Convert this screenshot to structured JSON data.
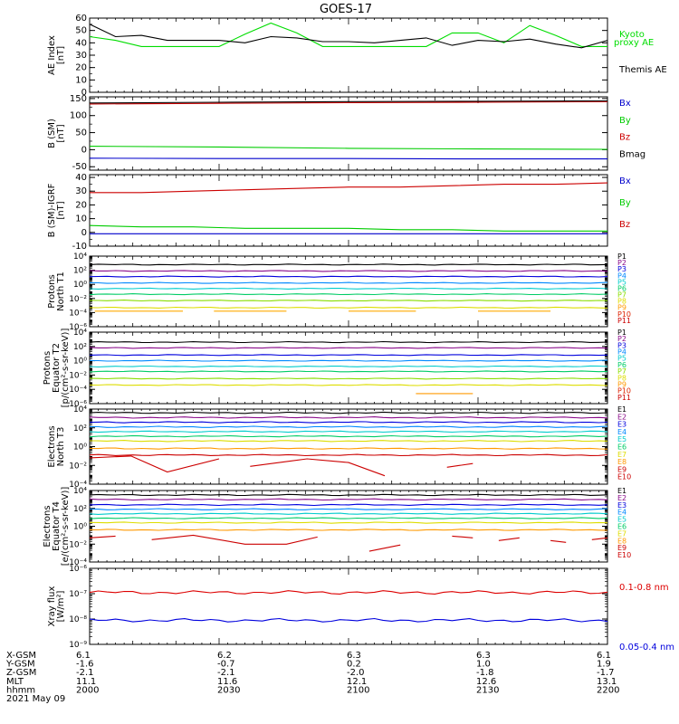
{
  "title": "GOES-17",
  "chart_data": [
    {
      "id": "ae",
      "type": "line",
      "ylabel": "AE Index [nT]",
      "yscale": "linear",
      "ylim": [
        0,
        60
      ],
      "yticks": [
        0,
        10,
        20,
        30,
        40,
        50,
        60
      ],
      "ticklabels": [
        "0",
        "10",
        "20",
        "30",
        "40",
        "50",
        "60"
      ],
      "x_fraction": [
        0,
        0.05,
        0.1,
        0.15,
        0.2,
        0.25,
        0.3,
        0.35,
        0.4,
        0.45,
        0.5,
        0.55,
        0.6,
        0.65,
        0.7,
        0.75,
        0.8,
        0.85,
        0.9,
        0.95,
        1
      ],
      "series": [
        {
          "name": "Kyoto proxy AE",
          "color": "#00dd00",
          "values": [
            45,
            42,
            37,
            37,
            37,
            37,
            47,
            56,
            48,
            37,
            37,
            37,
            37,
            37,
            48,
            48,
            40,
            54,
            46,
            37,
            37
          ]
        },
        {
          "name": "Themis AE",
          "color": "#000000",
          "values": [
            55,
            45,
            46,
            42,
            42,
            42,
            40,
            45,
            44,
            41,
            41,
            40,
            42,
            44,
            38,
            42,
            41,
            43,
            39,
            36,
            42
          ]
        }
      ]
    },
    {
      "id": "bsm",
      "type": "line",
      "ylabel": "B (SM) [nT]",
      "yscale": "linear",
      "ylim": [
        -60,
        155
      ],
      "yticks": [
        -50,
        0,
        50,
        100,
        150
      ],
      "ticklabels": [
        "-50",
        "0",
        "50",
        "100",
        "150"
      ],
      "x_fraction": [
        0,
        0.25,
        0.5,
        0.75,
        1
      ],
      "series": [
        {
          "name": "Bx",
          "color": "#0000cc",
          "values": [
            -25,
            -26,
            -26,
            -27,
            -27
          ]
        },
        {
          "name": "By",
          "color": "#00cc00",
          "values": [
            10,
            8,
            4,
            2,
            1
          ]
        },
        {
          "name": "Bz",
          "color": "#cc0000",
          "values": [
            134,
            136,
            138,
            139,
            141
          ]
        },
        {
          "name": "Bmag",
          "color": "#000000",
          "values": [
            137,
            139,
            141,
            142,
            143
          ]
        }
      ]
    },
    {
      "id": "bigrf",
      "type": "line",
      "ylabel": "B (SM)-IGRF [nT]",
      "yscale": "linear",
      "ylim": [
        -10,
        42
      ],
      "yticks": [
        -10,
        0,
        10,
        20,
        30,
        40
      ],
      "ticklabels": [
        "-10",
        "0",
        "10",
        "20",
        "30",
        "40"
      ],
      "x_fraction": [
        0,
        0.1,
        0.2,
        0.3,
        0.4,
        0.5,
        0.6,
        0.7,
        0.8,
        0.9,
        1
      ],
      "series": [
        {
          "name": "Bx",
          "color": "#0000cc",
          "values": [
            -1,
            -1,
            -1,
            -1,
            -1,
            -1,
            -1,
            -1,
            -1,
            -1,
            -1
          ]
        },
        {
          "name": "By",
          "color": "#00cc00",
          "values": [
            5,
            4,
            4,
            3,
            3,
            3,
            2,
            2,
            1,
            1,
            1
          ]
        },
        {
          "name": "Bz",
          "color": "#cc0000",
          "values": [
            29,
            29,
            30,
            31,
            32,
            33,
            33,
            34,
            35,
            35,
            36
          ]
        }
      ]
    },
    {
      "id": "pn",
      "type": "line",
      "ylabel": "Protons North T1",
      "yscale": "log",
      "ylim": [
        -6,
        4
      ],
      "yticks": [
        -6,
        -4,
        -2,
        0,
        2,
        4
      ],
      "ticklabels": [
        "10⁻⁶",
        "10⁻⁴",
        "10⁻²",
        "10⁰",
        "10²",
        "10⁴"
      ],
      "series": [
        {
          "name": "P1",
          "color": "#000000",
          "level": 2.8,
          "dashed": false
        },
        {
          "name": "P2",
          "color": "#8a0b8a",
          "level": 1.9,
          "dashed": false
        },
        {
          "name": "P3",
          "color": "#0000dd",
          "level": 1.1,
          "dashed": false
        },
        {
          "name": "P4",
          "color": "#0088ff",
          "level": 0.2,
          "dashed": false
        },
        {
          "name": "P5",
          "color": "#00cccc",
          "level": -0.6,
          "dashed": false
        },
        {
          "name": "P6",
          "color": "#00cc66",
          "level": -1.4,
          "dashed": false
        },
        {
          "name": "P7",
          "color": "#88dd00",
          "level": -2.3,
          "dashed": false
        },
        {
          "name": "P8",
          "color": "#dddd00",
          "level": -3.3,
          "dashed": true
        },
        {
          "name": "P9",
          "color": "#ff9900",
          "level": -9,
          "dashed": false
        },
        {
          "name": "P10",
          "color": "#dd2200",
          "level": -9,
          "dashed": false
        },
        {
          "name": "P11",
          "color": "#cc0000",
          "level": -9,
          "dashed": false
        }
      ]
    },
    {
      "id": "pe",
      "type": "line",
      "ylabel": "Protons Equator T2 [p/(cm²-s-sr-keV)]",
      "yscale": "log",
      "ylim": [
        -6,
        4
      ],
      "yticks": [
        -6,
        -4,
        -2,
        0,
        2,
        4
      ],
      "ticklabels": [
        "10⁻⁶",
        "10⁻⁴",
        "10⁻²",
        "10⁰",
        "10²",
        "10⁴"
      ],
      "series": [
        {
          "name": "P1",
          "color": "#000000",
          "level": 2.6,
          "dashed": false
        },
        {
          "name": "P2",
          "color": "#8a0b8a",
          "level": 1.8,
          "dashed": false
        },
        {
          "name": "P3",
          "color": "#0000dd",
          "level": 0.8,
          "dashed": false
        },
        {
          "name": "P4",
          "color": "#0088ff",
          "level": 0.0,
          "dashed": false
        },
        {
          "name": "P5",
          "color": "#00cccc",
          "level": -0.8,
          "dashed": false
        },
        {
          "name": "P6",
          "color": "#00cc66",
          "level": -1.5,
          "dashed": false
        },
        {
          "name": "P7",
          "color": "#88dd00",
          "level": -2.5,
          "dashed": false
        },
        {
          "name": "P8",
          "color": "#dddd00",
          "level": -3.4,
          "dashed": false
        },
        {
          "name": "P9",
          "color": "#ff9900",
          "level": -9,
          "dashed": false
        },
        {
          "name": "P10",
          "color": "#dd2200",
          "level": -9,
          "dashed": false
        },
        {
          "name": "P11",
          "color": "#cc0000",
          "level": -9,
          "dashed": false
        }
      ]
    },
    {
      "id": "en",
      "type": "line",
      "ylabel": "Electrons North T3",
      "yscale": "log",
      "ylim": [
        -4,
        4
      ],
      "yticks": [
        -4,
        -2,
        0,
        2,
        4
      ],
      "ticklabels": [
        "10⁻⁴",
        "10⁻²",
        "10⁰",
        "10²",
        "10⁴"
      ],
      "series": [
        {
          "name": "E1",
          "color": "#000000",
          "level": 3.6,
          "dashed": false
        },
        {
          "name": "E2",
          "color": "#8a0b8a",
          "level": 3.1,
          "dashed": false
        },
        {
          "name": "E3",
          "color": "#0000dd",
          "level": 2.6,
          "dashed": false
        },
        {
          "name": "E4",
          "color": "#0088ff",
          "level": 2.1,
          "dashed": false
        },
        {
          "name": "E5",
          "color": "#00cccc",
          "level": 1.6,
          "dashed": false
        },
        {
          "name": "E6",
          "color": "#00cc66",
          "level": 1.1,
          "dashed": false
        },
        {
          "name": "E7",
          "color": "#dddd00",
          "level": 0.6,
          "dashed": false
        },
        {
          "name": "E8",
          "color": "#ff9900",
          "level": -0.2,
          "dashed": false
        },
        {
          "name": "E9",
          "color": "#cc0000",
          "level": -0.9,
          "dashed": false
        },
        {
          "name": "E10",
          "color": "#cc0000",
          "level": -9,
          "dashed": false
        }
      ]
    },
    {
      "id": "ee",
      "type": "line",
      "ylabel": "Electrons Equator T4 [e/(cm²-s-sr-keV)]",
      "yscale": "log",
      "ylim": [
        -4,
        4
      ],
      "yticks": [
        -4,
        -2,
        0,
        2,
        4
      ],
      "ticklabels": [
        "10⁻⁴",
        "10⁻²",
        "10⁰",
        "10²",
        "10⁴"
      ],
      "series": [
        {
          "name": "E1",
          "color": "#000000",
          "level": 3.5,
          "dashed": false
        },
        {
          "name": "E2",
          "color": "#8a0b8a",
          "level": 3.0,
          "dashed": false
        },
        {
          "name": "E3",
          "color": "#0000dd",
          "level": 2.4,
          "dashed": false
        },
        {
          "name": "E4",
          "color": "#0088ff",
          "level": 1.9,
          "dashed": false
        },
        {
          "name": "E5",
          "color": "#00cccc",
          "level": 1.4,
          "dashed": false
        },
        {
          "name": "E6",
          "color": "#00cc66",
          "level": 0.9,
          "dashed": false
        },
        {
          "name": "E7",
          "color": "#dddd00",
          "level": 0.4,
          "dashed": false
        },
        {
          "name": "E8",
          "color": "#ff9900",
          "level": -0.4,
          "dashed": false
        },
        {
          "name": "E9",
          "color": "#cc0000",
          "level": -9,
          "dashed": false
        },
        {
          "name": "E10",
          "color": "#cc0000",
          "level": -9,
          "dashed": false
        }
      ]
    },
    {
      "id": "xray",
      "type": "line",
      "ylabel": "Xray flux [W/m²]",
      "yscale": "log",
      "ylim": [
        -9,
        -6
      ],
      "yticks": [
        -9,
        -8,
        -7,
        -6
      ],
      "ticklabels": [
        "10⁻⁹",
        "10⁻⁸",
        "10⁻⁷",
        "10⁻⁶"
      ],
      "series": [
        {
          "name": "0.1-0.8 nm",
          "color": "#dd0000",
          "level": -6.95,
          "dashed": false
        },
        {
          "name": "0.05-0.4 nm",
          "color": "#0000dd",
          "level": -8.05,
          "dashed": false
        }
      ]
    }
  ],
  "gaps": [
    {
      "panel": "pn",
      "color": "#ffaa00",
      "level": -3.8,
      "segments": [
        [
          0.01,
          0.18
        ],
        [
          0.24,
          0.38
        ],
        [
          0.5,
          0.63
        ],
        [
          0.75,
          0.89
        ]
      ]
    },
    {
      "panel": "pe",
      "color": "#ff9900",
      "level": -4.6,
      "segments": [
        [
          0.63,
          0.74
        ]
      ]
    },
    {
      "panel": "en",
      "color": "#cc0000",
      "segments": [
        [
          [
            0.0,
            -1.2
          ],
          [
            0.08,
            -1.0
          ],
          [
            0.15,
            -2.7
          ],
          [
            0.25,
            -1.3
          ]
        ],
        [
          [
            0.31,
            -2.1
          ],
          [
            0.42,
            -1.3
          ],
          [
            0.5,
            -1.7
          ],
          [
            0.57,
            -3.1
          ]
        ],
        [
          [
            0.69,
            -2.2
          ],
          [
            0.74,
            -1.8
          ]
        ]
      ]
    },
    {
      "panel": "ee",
      "color": "#cc0000",
      "segments": [
        [
          [
            0.0,
            -1.3
          ],
          [
            0.05,
            -1.1
          ]
        ],
        [
          [
            0.12,
            -1.5
          ],
          [
            0.2,
            -1.0
          ],
          [
            0.3,
            -2.0
          ],
          [
            0.38,
            -2.0
          ],
          [
            0.44,
            -1.2
          ]
        ],
        [
          [
            0.54,
            -2.8
          ],
          [
            0.6,
            -2.1
          ]
        ],
        [
          [
            0.7,
            -1.1
          ],
          [
            0.74,
            -1.3
          ]
        ],
        [
          [
            0.79,
            -1.6
          ],
          [
            0.83,
            -1.3
          ]
        ],
        [
          [
            0.89,
            -1.6
          ],
          [
            0.92,
            -1.8
          ]
        ],
        [
          [
            0.97,
            -1.5
          ],
          [
            1.0,
            -1.3
          ]
        ]
      ]
    }
  ],
  "legend": {
    "ae": [
      "Kyoto\nproxy AE",
      "Themis AE"
    ],
    "xray": [
      "0.1-0.8 nm",
      "0.05-0.4 nm"
    ]
  },
  "footer": {
    "row_labels": [
      "X-GSM",
      "Y-GSM",
      "Z-GSM",
      "MLT",
      "hhmm",
      "2021 May 09"
    ],
    "columns": [
      [
        "6.1",
        "-1.6",
        "-2.1",
        "11.1",
        "2000"
      ],
      [
        "6.2",
        "-0.7",
        "-2.1",
        "11.6",
        "2030"
      ],
      [
        "6.3",
        "0.2",
        "-2.0",
        "12.1",
        "2100"
      ],
      [
        "6.3",
        "1.0",
        "-1.8",
        "12.6",
        "2130"
      ],
      [
        "6.1",
        "1.9",
        "-1.7",
        "13.1",
        "2200"
      ]
    ]
  }
}
